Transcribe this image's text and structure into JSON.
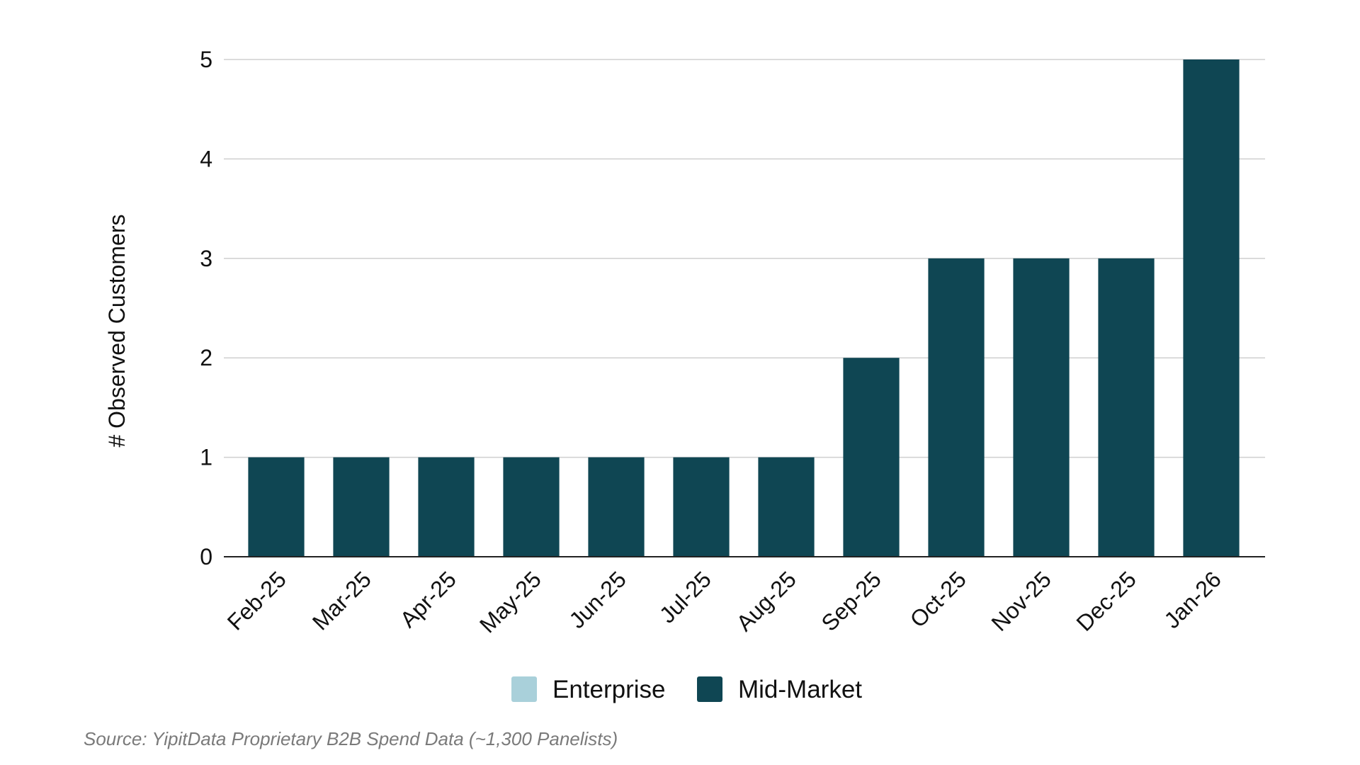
{
  "chart_data": {
    "type": "bar",
    "stacked": true,
    "categories": [
      "Feb-25",
      "Mar-25",
      "Apr-25",
      "May-25",
      "Jun-25",
      "Jul-25",
      "Aug-25",
      "Sep-25",
      "Oct-25",
      "Nov-25",
      "Dec-25",
      "Jan-26"
    ],
    "series": [
      {
        "name": "Enterprise",
        "color": "#a9d0da",
        "values": [
          0,
          0,
          0,
          0,
          0,
          0,
          0,
          0,
          0,
          0,
          0,
          0
        ]
      },
      {
        "name": "Mid-Market",
        "color": "#0f4653",
        "values": [
          1,
          1,
          1,
          1,
          1,
          1,
          1,
          2,
          3,
          3,
          3,
          5
        ]
      }
    ],
    "ylabel": "# Observed Customers",
    "ylim": [
      0,
      5
    ],
    "yticks": [
      0,
      1,
      2,
      3,
      4,
      5
    ],
    "grid": true,
    "legend_position": "bottom-center"
  },
  "source_note": "Source: YipitData Proprietary B2B Spend Data (~1,300 Panelists)"
}
